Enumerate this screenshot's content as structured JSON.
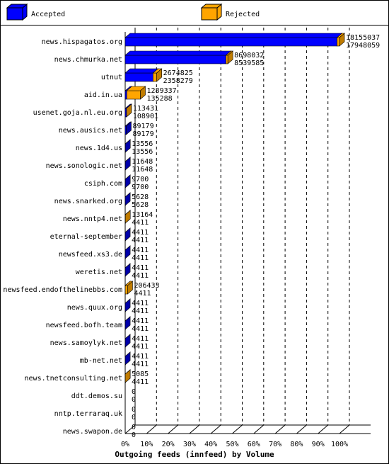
{
  "chart_data": {
    "type": "bar3d",
    "title": "Outgoing feeds (innfeed) by Volume",
    "legend": [
      "Accepted",
      "Rejected"
    ],
    "colors": {
      "accepted": "#0000ff",
      "rejected": "#ffa500"
    },
    "categories": [
      "news.hispagatos.org",
      "news.chmurka.net",
      "utnut",
      "aid.in.ua",
      "usenet.goja.nl.eu.org",
      "news.ausics.net",
      "news.1d4.us",
      "news.sonologic.net",
      "csiph.com",
      "news.snarked.org",
      "news.nntp4.net",
      "eternal-september",
      "newsfeed.xs3.de",
      "weretis.net",
      "newsfeed.endofthelinebbs.com",
      "news.quux.org",
      "newsfeed.bofh.team",
      "news.samoylyk.net",
      "mb-net.net",
      "news.tnetconsulting.net",
      "ddt.demos.su",
      "nntp.terraraq.uk",
      "news.swapon.de"
    ],
    "offered": [
      18155037,
      8698032,
      2674825,
      1289337,
      113431,
      89179,
      13556,
      11648,
      9700,
      5628,
      13164,
      4411,
      4411,
      4411,
      206433,
      4411,
      4411,
      4411,
      4411,
      5085,
      0,
      0,
      0
    ],
    "accepted": [
      17948059,
      8539585,
      2358279,
      135288,
      108901,
      89179,
      13556,
      11648,
      9700,
      5628,
      4411,
      4411,
      4411,
      4411,
      4411,
      4411,
      4411,
      4411,
      4411,
      4411,
      0,
      0,
      0
    ],
    "xlim": [
      0,
      100
    ],
    "xticks": [
      {
        "value": 0,
        "label": "0%"
      },
      {
        "value": 10,
        "label": "10%"
      },
      {
        "value": 20,
        "label": "20%"
      },
      {
        "value": 30,
        "label": "30%"
      },
      {
        "value": 40,
        "label": "40%"
      },
      {
        "value": 50,
        "label": "50%"
      },
      {
        "value": 60,
        "label": "60%"
      },
      {
        "value": 70,
        "label": "70%"
      },
      {
        "value": 80,
        "label": "80%"
      },
      {
        "value": 90,
        "label": "90%"
      },
      {
        "value": 100,
        "label": "100%"
      }
    ],
    "grid": true
  }
}
